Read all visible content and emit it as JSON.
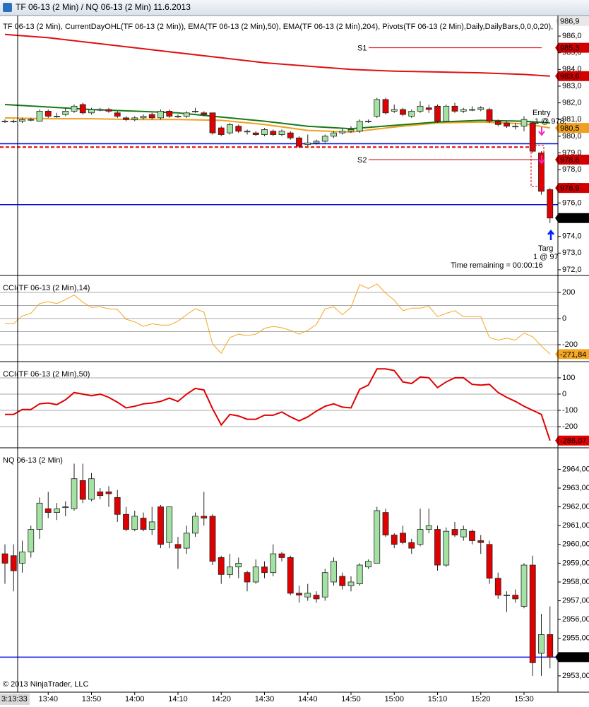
{
  "window_title": "TF 06-13 (2 Min) / NQ 06-13 (2 Min)  11.6.2013",
  "copyright": "© 2013 NinjaTrader, LLC",
  "cursor_time": "3:13:33",
  "x_axis": {
    "x": [
      "13:30",
      "13:32",
      "13:34",
      "13:36",
      "13:38",
      "13:40",
      "13:42",
      "13:44",
      "13:46",
      "13:48",
      "13:50",
      "13:52",
      "13:54",
      "13:56",
      "13:58",
      "14:00",
      "14:02",
      "14:04",
      "14:06",
      "14:08",
      "14:10",
      "14:12",
      "14:14",
      "14:16",
      "14:18",
      "14:20",
      "14:22",
      "14:24",
      "14:26",
      "14:28",
      "14:30",
      "14:32",
      "14:34",
      "14:36",
      "14:38",
      "14:40",
      "14:42",
      "14:44",
      "14:46",
      "14:48",
      "14:50",
      "14:52",
      "14:54",
      "14:56",
      "14:58",
      "15:00",
      "15:02",
      "15:04",
      "15:06",
      "15:08",
      "15:10",
      "15:12",
      "15:14",
      "15:16",
      "15:18",
      "15:20",
      "15:22",
      "15:24",
      "15:26",
      "15:28",
      "15:30",
      "15:32",
      "15:34",
      "15:36"
    ],
    "xticks": [
      "13:40",
      "13:50",
      "14:00",
      "14:10",
      "14:20",
      "14:30",
      "14:40",
      "14:50",
      "15:00",
      "15:10",
      "15:20",
      "15:30"
    ]
  },
  "chart_data": [
    {
      "type": "candlestick",
      "label": "TF 06-13 (2 Min), CurrentDayOHL(TF 06-13 (2 Min)), EMA(TF 06-13 (2 Min),50), EMA(TF 06-13 (2 Min),204), Pivots(TF 06-13 (2 Min),Daily,DailyBars,0,0,0,20),",
      "ylim": [
        971.66,
        987.23
      ],
      "yticks": [
        {
          "value": 972,
          "label": "972,0"
        },
        {
          "value": 973,
          "label": "973,0"
        },
        {
          "value": 974,
          "label": "974,0"
        },
        {
          "value": 975,
          "label": "975,0"
        },
        {
          "value": 976,
          "label": "976,0"
        },
        {
          "value": 977,
          "label": "977,0"
        },
        {
          "value": 978,
          "label": "978,0"
        },
        {
          "value": 979,
          "label": "979,0"
        },
        {
          "value": 980,
          "label": "980,0"
        },
        {
          "value": 981,
          "label": "981,0"
        },
        {
          "value": 982,
          "label": "982,0"
        },
        {
          "value": 983,
          "label": "983,0"
        },
        {
          "value": 984,
          "label": "984,0"
        },
        {
          "value": 985,
          "label": "985,0"
        },
        {
          "value": 986,
          "label": "986,0"
        }
      ],
      "up_color": "#a4e2a4",
      "down_color": "#e00000",
      "open": [
        980.9,
        980.9,
        980.9,
        981.0,
        980.9,
        981.5,
        981.2,
        981.3,
        981.5,
        981.9,
        981.4,
        981.6,
        981.6,
        981.4,
        981.1,
        981.0,
        981.1,
        981.3,
        981.1,
        981.5,
        981.2,
        981.2,
        981.5,
        981.4,
        981.4,
        980.5,
        980.2,
        980.6,
        980.3,
        980.2,
        980.1,
        980.3,
        980.1,
        980.2,
        979.9,
        979.5,
        979.6,
        979.7,
        980.0,
        980.2,
        980.3,
        980.3,
        980.9,
        981.2,
        982.2,
        981.5,
        981.6,
        981.2,
        981.5,
        981.7,
        981.8,
        980.9,
        981.8,
        981.5,
        981.6,
        981.6,
        981.6,
        980.9,
        980.8,
        980.6,
        980.6,
        980.8,
        979.0,
        976.8
      ],
      "high": [
        981.0,
        981.0,
        981.1,
        981.1,
        981.6,
        981.6,
        981.4,
        981.7,
        981.9,
        982.0,
        981.7,
        981.7,
        981.7,
        981.5,
        981.2,
        981.2,
        981.3,
        981.4,
        981.6,
        981.6,
        981.3,
        981.5,
        981.7,
        981.5,
        981.4,
        980.6,
        980.8,
        980.7,
        980.4,
        980.3,
        980.5,
        980.4,
        980.4,
        980.3,
        980.0,
        980.1,
        979.8,
        980.1,
        980.3,
        980.5,
        980.6,
        981.0,
        981.0,
        982.3,
        982.3,
        981.9,
        981.7,
        981.6,
        982.1,
        981.9,
        981.9,
        981.9,
        982.0,
        981.7,
        981.8,
        981.8,
        981.7,
        981.0,
        980.9,
        980.8,
        981.2,
        980.9,
        979.1,
        976.9
      ],
      "low": [
        980.8,
        980.8,
        980.8,
        980.9,
        980.9,
        981.1,
        981.1,
        981.2,
        981.4,
        981.3,
        981.3,
        981.5,
        981.4,
        981.1,
        980.9,
        980.9,
        981.0,
        981.0,
        981.0,
        981.1,
        981.1,
        981.1,
        981.4,
        981.2,
        980.1,
        980.0,
        980.1,
        980.2,
        980.1,
        980.0,
        980.0,
        980.0,
        980.0,
        979.8,
        979.3,
        979.4,
        979.5,
        979.6,
        979.9,
        980.1,
        980.2,
        980.2,
        980.8,
        981.1,
        981.3,
        981.4,
        981.2,
        981.1,
        981.4,
        981.4,
        980.8,
        980.9,
        981.4,
        981.4,
        981.5,
        981.5,
        980.8,
        980.6,
        980.5,
        980.4,
        980.3,
        979.0,
        976.5,
        974.8
      ],
      "close": [
        980.9,
        980.9,
        981.0,
        981.0,
        981.5,
        981.2,
        981.2,
        981.5,
        981.8,
        981.4,
        981.6,
        981.6,
        981.5,
        981.2,
        981.0,
        981.1,
        981.2,
        981.1,
        981.5,
        981.2,
        981.2,
        981.4,
        981.5,
        981.3,
        980.2,
        980.1,
        980.7,
        980.3,
        980.3,
        980.1,
        980.4,
        980.1,
        980.3,
        979.9,
        979.4,
        979.6,
        979.7,
        980.0,
        980.2,
        980.3,
        980.4,
        980.9,
        980.9,
        982.2,
        981.4,
        981.6,
        981.3,
        981.5,
        981.8,
        981.6,
        980.9,
        981.8,
        981.5,
        981.6,
        981.6,
        981.7,
        980.9,
        980.7,
        980.6,
        980.6,
        981.0,
        979.1,
        976.7,
        975.1
      ],
      "overlays": [
        {
          "color": "#e01010",
          "x": [
            "13:30",
            "13:40",
            "13:50",
            "14:00",
            "14:10",
            "14:20",
            "14:30",
            "14:40",
            "14:50",
            "15:00",
            "15:10",
            "15:20",
            "15:30",
            "15:36"
          ],
          "values": [
            986.1,
            985.9,
            985.6,
            985.3,
            985.0,
            984.7,
            984.4,
            984.2,
            984.0,
            983.9,
            983.85,
            983.8,
            983.7,
            983.6
          ]
        },
        {
          "color": "#f0a020",
          "x": [
            "13:30",
            "13:40",
            "13:50",
            "14:00",
            "14:10",
            "14:20",
            "14:30",
            "14:40",
            "14:50",
            "15:00",
            "15:10",
            "15:20",
            "15:30",
            "15:36"
          ],
          "values": [
            981.1,
            981.05,
            981.05,
            981.0,
            981.0,
            980.95,
            980.7,
            980.35,
            980.25,
            980.55,
            980.8,
            980.85,
            980.75,
            980.5
          ]
        },
        {
          "color": "#167a16",
          "x": [
            "13:30",
            "13:40",
            "13:50",
            "14:00",
            "14:10",
            "14:20",
            "14:30",
            "14:40",
            "14:50",
            "15:00",
            "15:10",
            "15:20",
            "15:30",
            "15:36"
          ],
          "values": [
            981.9,
            981.75,
            981.6,
            981.5,
            981.4,
            981.15,
            980.9,
            980.6,
            980.45,
            980.65,
            980.85,
            980.95,
            980.9,
            980.8
          ]
        }
      ],
      "levels": [
        {
          "value": 985.3,
          "label": "S1",
          "color": "#d00000"
        },
        {
          "value": 978.6,
          "label": "S2",
          "color": "#d00000"
        },
        {
          "value": 979.55,
          "color": "#0010e0"
        },
        {
          "value": 975.9,
          "color": "#0010e0"
        },
        {
          "value": 979.35,
          "color": "#e00000",
          "dashed": true
        }
      ],
      "flags": [
        {
          "value": 986.9,
          "label": "986,9",
          "color": "#e8e8e8"
        },
        {
          "value": 985.3,
          "label": "985,3",
          "color": "#d00000"
        },
        {
          "value": 983.6,
          "label": "983,6",
          "color": "#d00000"
        },
        {
          "value": 980.5,
          "label": "980,5",
          "color": "#f0a020"
        },
        {
          "value": 978.6,
          "label": "978,6",
          "color": "#d00000"
        },
        {
          "value": 976.9,
          "label": "976,9",
          "color": "#d00000"
        },
        {
          "value": 975.1,
          "label": "975,1",
          "color": "#000000"
        }
      ],
      "annotations": [
        "Entry",
        "1 @ 978,",
        "Targ",
        "1 @ 97",
        "Time remaining = 00:00:16"
      ]
    },
    {
      "type": "line",
      "label": "CCI(TF 06-13 (2 Min),14)",
      "ylim": [
        -324,
        319
      ],
      "yticks": [
        200,
        0,
        -200
      ],
      "gridlines": [
        200,
        100,
        0,
        -100,
        -200
      ],
      "color": "#f5a623",
      "values": [
        -40,
        -40,
        20,
        40,
        115,
        130,
        115,
        145,
        180,
        125,
        85,
        90,
        75,
        70,
        -5,
        -25,
        -60,
        -40,
        -50,
        -50,
        -20,
        30,
        75,
        50,
        -195,
        -265,
        -145,
        -120,
        -130,
        -120,
        -75,
        -60,
        -70,
        -90,
        -120,
        -90,
        -45,
        75,
        90,
        30,
        85,
        260,
        230,
        265,
        195,
        140,
        60,
        80,
        80,
        95,
        15,
        40,
        60,
        15,
        15,
        15,
        -145,
        -165,
        -150,
        -165,
        -110,
        -140,
        -210,
        -271.84
      ],
      "flags": [
        {
          "value": -271.84,
          "label": "-271,84",
          "color": "#f5a623"
        }
      ]
    },
    {
      "type": "line",
      "label": "CCI(TF 06-13 (2 Min),50)",
      "ylim": [
        -326,
        191
      ],
      "yticks": [
        100,
        0,
        -100,
        -200
      ],
      "gridlines": [
        100,
        0,
        -100,
        -200
      ],
      "color": "#e00000",
      "values": [
        -125,
        -125,
        -95,
        -95,
        -60,
        -55,
        -65,
        -35,
        10,
        0,
        -10,
        0,
        -20,
        -50,
        -85,
        -75,
        -60,
        -55,
        -45,
        -25,
        -45,
        0,
        35,
        25,
        -90,
        -190,
        -125,
        -135,
        -155,
        -155,
        -130,
        -130,
        -110,
        -140,
        -165,
        -140,
        -105,
        -75,
        -60,
        -80,
        -85,
        30,
        55,
        155,
        155,
        145,
        75,
        65,
        105,
        100,
        40,
        75,
        100,
        100,
        60,
        55,
        60,
        10,
        -20,
        -45,
        -75,
        -100,
        -125,
        -286.07
      ],
      "flags": [
        {
          "value": -286.07,
          "label": "-286,07",
          "color": "#e00000"
        }
      ]
    },
    {
      "type": "candlestick",
      "label": "NQ 06-13 (2 Min)",
      "ylim": [
        2952.17,
        2965.07
      ],
      "yticks": [
        {
          "value": 2953,
          "label": "2953,00"
        },
        {
          "value": 2954,
          "label": "2954,00"
        },
        {
          "value": 2955,
          "label": "2955,00"
        },
        {
          "value": 2956,
          "label": "2956,00"
        },
        {
          "value": 2957,
          "label": "2957,00"
        },
        {
          "value": 2958,
          "label": "2958,00"
        },
        {
          "value": 2959,
          "label": "2959,00"
        },
        {
          "value": 2960,
          "label": "2960,00"
        },
        {
          "value": 2961,
          "label": "2961,00"
        },
        {
          "value": 2962,
          "label": "2962,00"
        },
        {
          "value": 2963,
          "label": "2963,00"
        },
        {
          "value": 2964,
          "label": "2964,00"
        }
      ],
      "up_color": "#a4e2a4",
      "down_color": "#e00000",
      "open": [
        2959.5,
        2959.4,
        2959.0,
        2959.6,
        2960.8,
        2961.9,
        2961.7,
        2962.0,
        2961.9,
        2963.4,
        2962.4,
        2962.8,
        2962.8,
        2962.5,
        2961.6,
        2960.8,
        2961.4,
        2960.8,
        2962.0,
        2960.1,
        2960.0,
        2959.8,
        2960.6,
        2961.5,
        2961.5,
        2959.3,
        2958.4,
        2958.8,
        2958.5,
        2958.0,
        2958.8,
        2958.5,
        2959.5,
        2959.3,
        2957.4,
        2957.2,
        2957.3,
        2957.2,
        2958.0,
        2958.3,
        2957.8,
        2957.9,
        2958.8,
        2959.0,
        2961.7,
        2960.5,
        2960.6,
        2960.1,
        2960.0,
        2960.8,
        2960.8,
        2958.9,
        2960.8,
        2960.4,
        2960.7,
        2960.2,
        2960.0,
        2958.2,
        2957.3,
        2957.3,
        2956.7,
        2958.9,
        2954.2,
        2955.2
      ],
      "high": [
        2960.0,
        2960.0,
        2960.2,
        2961.0,
        2962.5,
        2962.8,
        2962.2,
        2962.3,
        2964.3,
        2964.3,
        2963.8,
        2963.0,
        2963.1,
        2962.9,
        2962.0,
        2961.8,
        2961.7,
        2962.0,
        2962.1,
        2962.0,
        2960.4,
        2961.0,
        2961.7,
        2962.8,
        2961.6,
        2959.4,
        2959.5,
        2959.3,
        2958.6,
        2959.2,
        2959.1,
        2960.0,
        2959.6,
        2959.4,
        2957.8,
        2957.9,
        2957.5,
        2958.7,
        2959.3,
        2958.5,
        2958.3,
        2959.0,
        2959.2,
        2962.0,
        2961.9,
        2960.6,
        2961.0,
        2960.3,
        2961.9,
        2961.9,
        2961.0,
        2960.9,
        2961.2,
        2961.0,
        2960.8,
        2960.5,
        2960.2,
        2958.5,
        2957.5,
        2957.6,
        2959.0,
        2959.4,
        2956.3,
        2956.7
      ],
      "low": [
        2957.9,
        2957.5,
        2958.5,
        2959.3,
        2960.3,
        2961.4,
        2961.3,
        2961.5,
        2961.8,
        2962.2,
        2962.3,
        2962.4,
        2962.0,
        2961.2,
        2960.7,
        2960.7,
        2960.7,
        2960.5,
        2959.8,
        2959.8,
        2958.7,
        2959.5,
        2960.4,
        2961.0,
        2958.9,
        2957.9,
        2958.2,
        2958.2,
        2957.5,
        2957.9,
        2958.2,
        2958.3,
        2959.1,
        2957.3,
        2956.9,
        2957.0,
        2956.9,
        2957.0,
        2957.8,
        2957.6,
        2957.5,
        2957.8,
        2958.7,
        2959.0,
        2960.4,
        2959.8,
        2960.0,
        2959.5,
        2959.9,
        2960.6,
        2958.6,
        2958.8,
        2960.4,
        2960.2,
        2960.0,
        2959.5,
        2957.9,
        2957.1,
        2956.4,
        2956.9,
        2956.6,
        2953.0,
        2953.0,
        2953.4
      ],
      "close": [
        2959.0,
        2958.6,
        2959.6,
        2960.8,
        2962.2,
        2961.7,
        2961.9,
        2962.0,
        2963.5,
        2962.4,
        2963.5,
        2962.6,
        2962.7,
        2961.6,
        2960.8,
        2961.5,
        2960.8,
        2961.2,
        2960.0,
        2962.0,
        2959.8,
        2960.6,
        2961.5,
        2961.4,
        2959.1,
        2958.4,
        2958.8,
        2959.0,
        2958.0,
        2958.8,
        2958.5,
        2959.5,
        2959.3,
        2957.4,
        2957.3,
        2957.4,
        2957.1,
        2958.5,
        2959.1,
        2957.8,
        2958.0,
        2958.9,
        2959.1,
        2961.8,
        2960.5,
        2960.0,
        2960.1,
        2959.8,
        2960.8,
        2961.0,
        2958.9,
        2960.7,
        2960.5,
        2960.8,
        2960.2,
        2960.1,
        2958.2,
        2957.3,
        2957.3,
        2957.1,
        2958.9,
        2953.7,
        2955.2,
        2954.0
      ],
      "levels": [
        {
          "value": 2954.0,
          "color": "#0010e0"
        }
      ],
      "flags": [
        {
          "value": 2954.0,
          "label": "2954,00",
          "color": "#000000"
        }
      ]
    }
  ]
}
